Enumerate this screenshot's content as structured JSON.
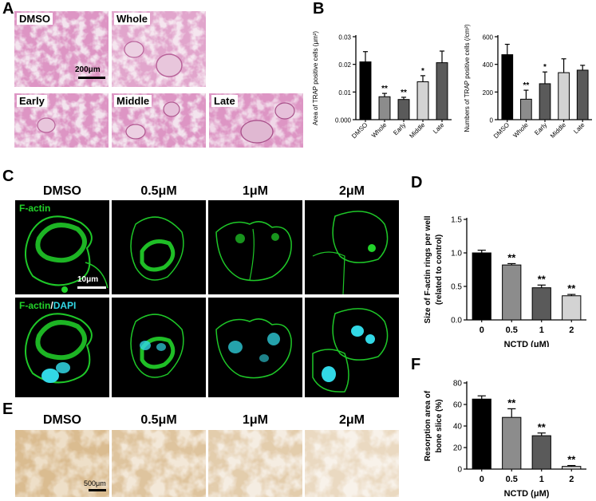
{
  "panel_labels": {
    "a": "A",
    "b": "B",
    "c": "C",
    "d": "D",
    "e": "E",
    "f": "F"
  },
  "panel_a": {
    "tiles": [
      "DMSO",
      "Whole",
      "Early",
      "Middle",
      "Late"
    ],
    "scale_bar": "200μm"
  },
  "panel_c": {
    "columns": [
      "DMSO",
      "0.5μM",
      "1μM",
      "2μM"
    ],
    "row1_label": "F-actin",
    "row2_label_a": "F-actin",
    "row2_label_sep": "/",
    "row2_label_b": "DAPI",
    "scale_bar": "10μm"
  },
  "panel_e": {
    "columns": [
      "DMSO",
      "0.5μM",
      "1μM",
      "2μM"
    ],
    "scale_bar": "500μm"
  },
  "colors": {
    "black": "#000000",
    "dark_gray": "#5a5a5a",
    "mid_gray": "#8c8c8c",
    "light_gray": "#d3d3d3",
    "actin_green": "#22d32a",
    "dapi_cyan": "#32d8e6"
  },
  "chart_data": [
    {
      "id": "B1",
      "type": "bar",
      "ylabel": "Area of TRAP positive cells (μm²)",
      "categories": [
        "DMSO",
        "Whole",
        "Early",
        "Middle",
        "Late"
      ],
      "values": [
        0.0209,
        0.0083,
        0.0073,
        0.0137,
        0.0206
      ],
      "errors": [
        0.0037,
        0.0012,
        0.0008,
        0.0022,
        0.0042
      ],
      "significance": [
        "",
        "**",
        "**",
        "*",
        ""
      ],
      "ylim": [
        0,
        0.03
      ],
      "yticks": [
        "0.000",
        "0.01",
        "0.02",
        "0.03"
      ],
      "colors": [
        "#000000",
        "#8c8c8c",
        "#5a5a5a",
        "#d3d3d3",
        "#5a5a5a"
      ]
    },
    {
      "id": "B2",
      "type": "bar",
      "ylabel": "Numbers of TRAP positive cells (/cm²)",
      "categories": [
        "DMSO",
        "Whole",
        "Early",
        "Middle",
        "Late"
      ],
      "values": [
        470,
        148,
        260,
        340,
        358
      ],
      "errors": [
        75,
        65,
        85,
        100,
        35
      ],
      "significance": [
        "",
        "**",
        "*",
        "",
        ""
      ],
      "ylim": [
        0,
        600
      ],
      "yticks": [
        "0",
        "200",
        "400",
        "600"
      ],
      "colors": [
        "#000000",
        "#8c8c8c",
        "#5a5a5a",
        "#d3d3d3",
        "#5a5a5a"
      ]
    },
    {
      "id": "D",
      "type": "bar",
      "ylabel": "Size of F-actin rings per well",
      "ylabel2": "(related to control)",
      "xlabel": "NCTD (μM)",
      "categories": [
        "0",
        "0.5",
        "1",
        "2"
      ],
      "values": [
        1.0,
        0.82,
        0.48,
        0.36
      ],
      "errors": [
        0.04,
        0.02,
        0.04,
        0.02
      ],
      "significance": [
        "",
        "**",
        "**",
        "**"
      ],
      "ylim": [
        0,
        1.5
      ],
      "yticks": [
        "0.0",
        "0.5",
        "1.0",
        "1.5"
      ],
      "colors": [
        "#000000",
        "#8c8c8c",
        "#5a5a5a",
        "#d3d3d3"
      ]
    },
    {
      "id": "F",
      "type": "bar",
      "ylabel": "Resorption area of",
      "ylabel2": "bone slice (%)",
      "xlabel": "NCTD (μM)",
      "categories": [
        "0",
        "0.5",
        "1",
        "2"
      ],
      "values": [
        65,
        48,
        31,
        2.5
      ],
      "errors": [
        3,
        8,
        2.5,
        0.8
      ],
      "significance": [
        "",
        "**",
        "**",
        "**"
      ],
      "ylim": [
        0,
        80
      ],
      "yticks": [
        "0",
        "20",
        "40",
        "60",
        "80"
      ],
      "colors": [
        "#000000",
        "#8c8c8c",
        "#5a5a5a",
        "#d3d3d3"
      ]
    }
  ]
}
